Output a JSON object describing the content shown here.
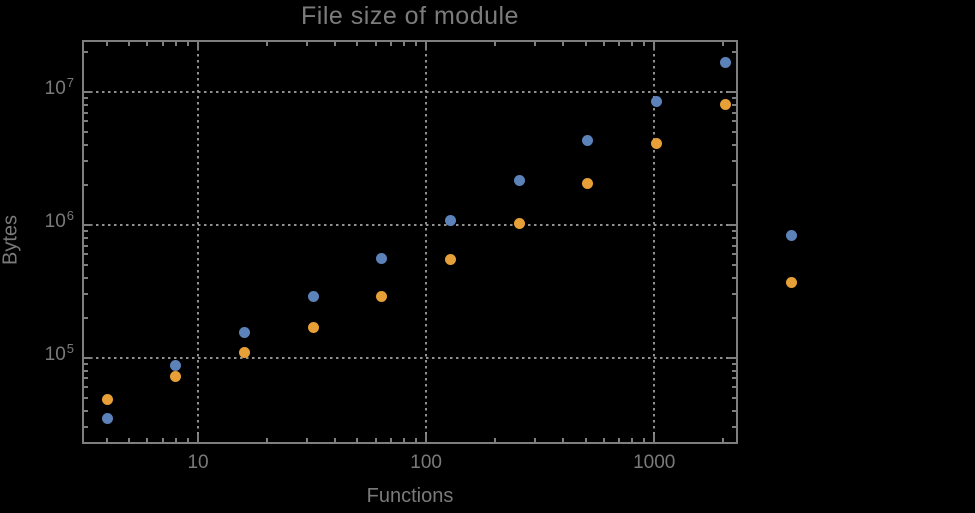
{
  "title": "File size of module",
  "axes": {
    "x": {
      "label": "Functions"
    },
    "y": {
      "label": "Bytes"
    }
  },
  "colors": {
    "background": "#000000",
    "text": "#7a7a7a",
    "frame": "#7e7e7e",
    "grid": "#8f8f8f",
    "series_blue": "#5c82ba",
    "series_orange": "#e79f37"
  },
  "chart_data": {
    "type": "scatter",
    "title": "File size of module",
    "xlabel": "Functions",
    "ylabel": "Bytes",
    "xscale": "log",
    "yscale": "log",
    "xlim": [
      3.1,
      2330
    ],
    "ylim": [
      22500,
      24600000
    ],
    "grid": true,
    "grid_style": "dotted",
    "legend": false,
    "x": [
      4,
      8,
      16,
      32,
      64,
      128,
      256,
      512,
      1024,
      2048,
      4000
    ],
    "series": [
      {
        "name": "series-1-blue",
        "color": "#5c82ba",
        "values": [
          35000,
          88000,
          155000,
          290000,
          555000,
          1080000,
          2150000,
          4300000,
          8500000,
          16800000,
          830000
        ]
      },
      {
        "name": "series-2-orange",
        "color": "#e79f37",
        "values": [
          49000,
          72000,
          109000,
          170000,
          290000,
          545000,
          1020000,
          2050000,
          4100000,
          8100000,
          370000
        ]
      }
    ],
    "x_ticks": [
      {
        "value": 10,
        "label": "10"
      },
      {
        "value": 100,
        "label": "100"
      },
      {
        "value": 1000,
        "label": "1000"
      }
    ],
    "y_ticks": [
      {
        "value": 100000,
        "base": "10",
        "exp": "5"
      },
      {
        "value": 1000000,
        "base": "10",
        "exp": "6"
      },
      {
        "value": 10000000,
        "base": "10",
        "exp": "7"
      }
    ]
  }
}
